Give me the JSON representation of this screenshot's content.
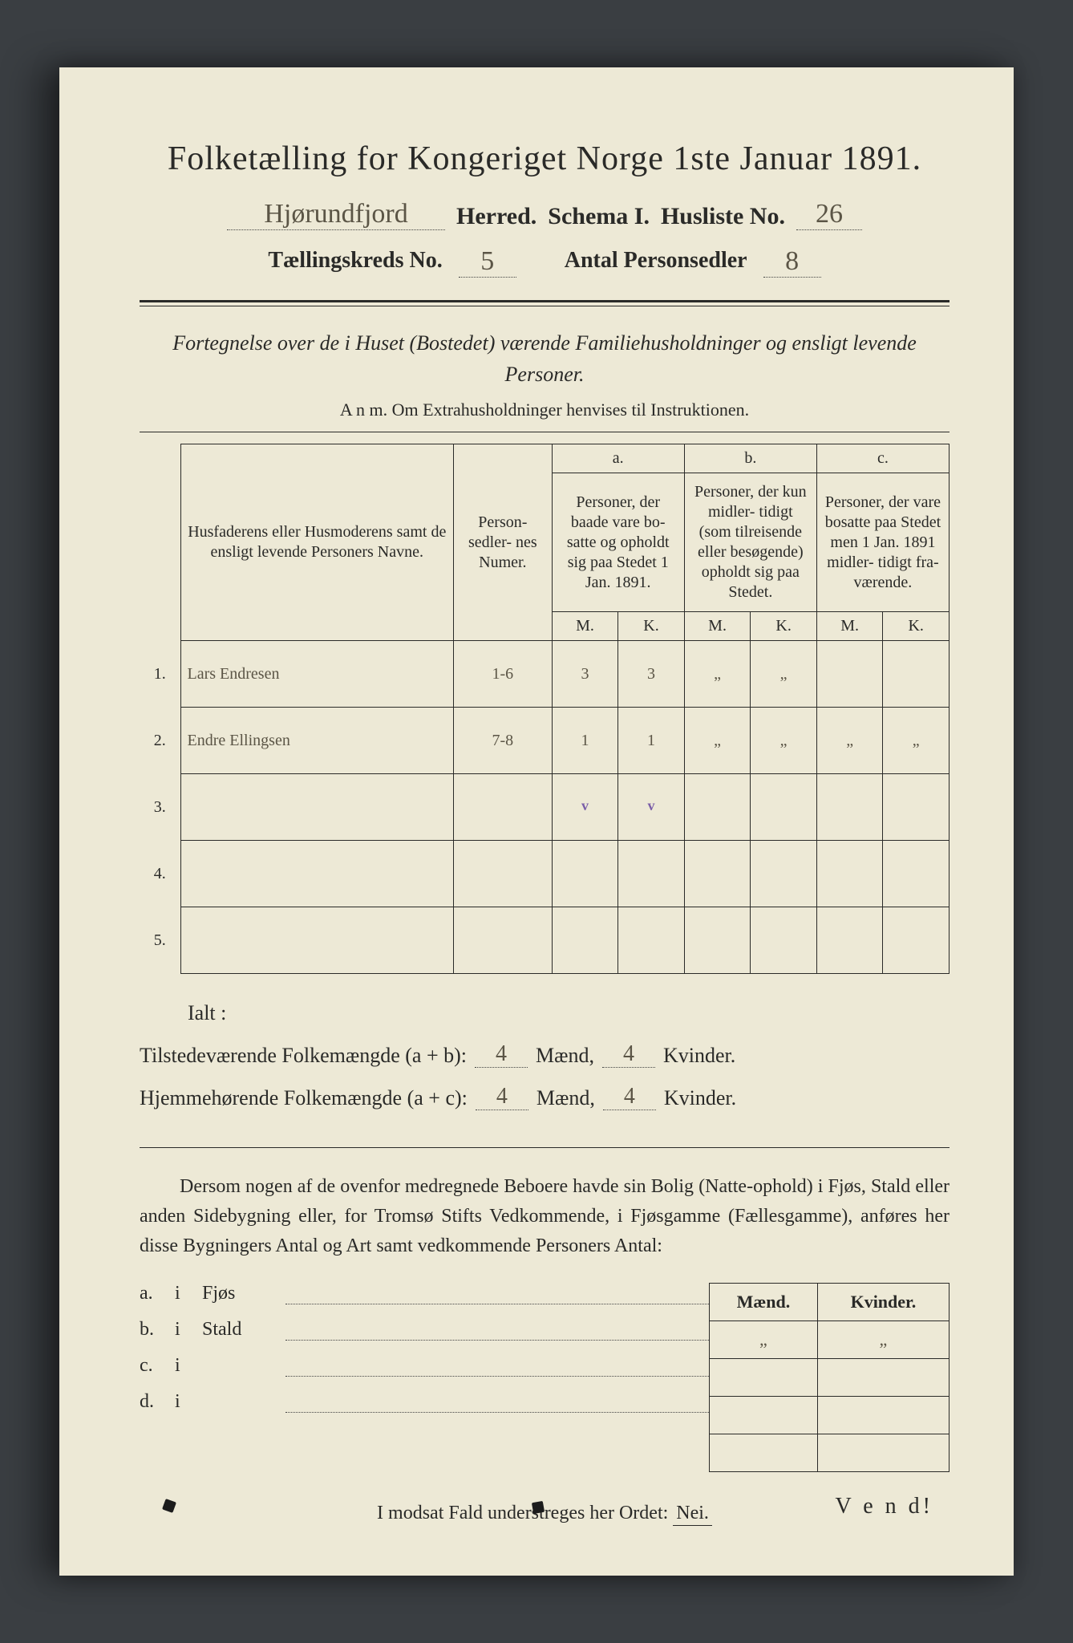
{
  "title": "Folketælling for Kongeriget Norge 1ste Januar 1891.",
  "header": {
    "herred_value": "Hjørundfjord",
    "herred_label": "Herred.",
    "schema_label": "Schema I.",
    "husliste_label": "Husliste No.",
    "husliste_value": "26",
    "kreds_label": "Tællingskreds No.",
    "kreds_value": "5",
    "sedler_label": "Antal Personsedler",
    "sedler_value": "8"
  },
  "intro": {
    "line1": "Fortegnelse over de i Huset (Bostedet) værende Familiehusholdninger og ensligt levende Personer.",
    "line2": "A n m.  Om Extrahusholdninger henvises til Instruktionen."
  },
  "table": {
    "col_name": "Husfaderens eller Husmoderens samt de ensligt levende Personers Navne.",
    "col_num": "Person-\nsedler-\nnes\nNumer.",
    "group_a": "a.",
    "col_a": "Personer, der baade vare bo-\nsatte og opholdt sig paa Stedet 1 Jan. 1891.",
    "group_b": "b.",
    "col_b": "Personer, der kun midler-\ntidigt (som tilreisende eller besøgende) opholdt sig paa Stedet.",
    "group_c": "c.",
    "col_c": "Personer, der vare bosatte paa Stedet men 1 Jan. 1891 midler-\ntidigt fra-\nværende.",
    "m": "M.",
    "k": "K.",
    "rows": [
      {
        "n": "1.",
        "name": "Lars Endresen",
        "num": "1-6",
        "am": "3",
        "ak": "3",
        "bm": "„",
        "bk": "„",
        "cm": "",
        "ck": ""
      },
      {
        "n": "2.",
        "name": "Endre Ellingsen",
        "num": "7-8",
        "am": "1",
        "ak": "1",
        "bm": "„",
        "bk": "„",
        "cm": "„",
        "ck": "„"
      },
      {
        "n": "3.",
        "name": "",
        "num": "",
        "am": "",
        "ak": "",
        "bm": "",
        "bk": "",
        "cm": "",
        "ck": "",
        "check": true
      },
      {
        "n": "4.",
        "name": "",
        "num": "",
        "am": "",
        "ak": "",
        "bm": "",
        "bk": "",
        "cm": "",
        "ck": ""
      },
      {
        "n": "5.",
        "name": "",
        "num": "",
        "am": "",
        "ak": "",
        "bm": "",
        "bk": "",
        "cm": "",
        "ck": ""
      }
    ]
  },
  "ialt": {
    "label": "Ialt :",
    "line1_a": "Tilstedeværende  Folkemængde (a + b):",
    "line1_m": "4",
    "maend": "Mænd,",
    "line1_k": "4",
    "kvinder": "Kvinder.",
    "line2_a": "Hjemmehørende Folkemængde (a + c):",
    "line2_m": "4",
    "line2_k": "4"
  },
  "para": "Dersom nogen af de ovenfor medregnede Beboere havde sin Bolig (Natte-ophold) i Fjøs, Stald eller anden Sidebygning eller, for Tromsø Stifts Vedkommende, i Fjøsgamme (Fællesgamme), anføres her disse Bygningers Antal og Art samt vedkommende Personers Antal:",
  "mini": {
    "maend": "Mænd.",
    "kvinder": "Kvinder.",
    "rows": [
      {
        "k": "a.",
        "i": "i",
        "label": "Fjøs",
        "m": "„",
        "kv": "„"
      },
      {
        "k": "b.",
        "i": "i",
        "label": "Stald",
        "m": "",
        "kv": ""
      },
      {
        "k": "c.",
        "i": "i",
        "label": "",
        "m": "",
        "kv": ""
      },
      {
        "k": "d.",
        "i": "i",
        "label": "",
        "m": "",
        "kv": ""
      }
    ]
  },
  "footer": {
    "text_a": "I modsat Fald understreges her Ordet:",
    "nei": "Nei.",
    "vend": "V e n d!"
  }
}
